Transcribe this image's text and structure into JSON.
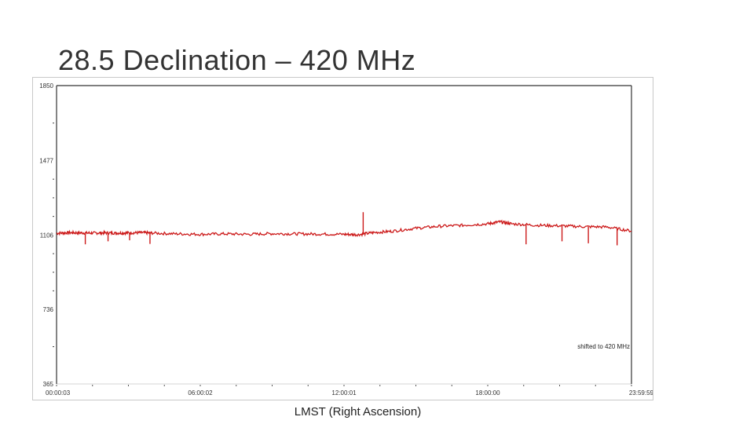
{
  "slide": {
    "title": "28.5 Declination – 420 MHz",
    "xlabel": "LMST (Right Ascension)"
  },
  "chart_data": {
    "type": "line",
    "title": "28.5 Declination – 420 MHz",
    "xlabel": "LMST (Right Ascension)",
    "ylabel": "",
    "x_tick_labels": [
      "00:00:03",
      "06:00:02",
      "12:00:01",
      "18:00:00",
      "23:59:59"
    ],
    "y_tick_labels": [
      "1850",
      "1477",
      "1106",
      "736",
      "365"
    ],
    "y_tick_values": [
      1850,
      1477,
      1106,
      736,
      365
    ],
    "ylim": [
      365,
      1850
    ],
    "xlim_hours": [
      0,
      24
    ],
    "annotation": "shifted to 420 MHz",
    "grid": false,
    "colors": {
      "series": "#cc1a1a",
      "axis": "#333333"
    },
    "series": [
      {
        "x_hours": [
          0.0,
          0.5,
          1.0,
          1.5,
          2.0,
          2.5,
          3.0,
          3.5,
          4.0,
          5.0,
          6.0,
          7.0,
          8.0,
          9.0,
          10.0,
          11.0,
          12.0,
          12.6,
          13.2,
          14.0,
          15.0,
          16.0,
          17.0,
          18.0,
          18.5,
          19.0,
          20.0,
          21.0,
          22.0,
          23.0,
          24.0
        ],
        "values": [
          1115,
          1118,
          1117,
          1116,
          1117,
          1116,
          1117,
          1118,
          1116,
          1112,
          1110,
          1112,
          1110,
          1113,
          1112,
          1111,
          1110,
          1108,
          1118,
          1125,
          1140,
          1150,
          1155,
          1162,
          1172,
          1162,
          1155,
          1152,
          1148,
          1146,
          1126
        ]
      }
    ],
    "spikes": [
      {
        "x_hours": 1.2,
        "value": 1060
      },
      {
        "x_hours": 2.15,
        "value": 1075
      },
      {
        "x_hours": 3.05,
        "value": 1080
      },
      {
        "x_hours": 3.9,
        "value": 1062
      },
      {
        "x_hours": 12.8,
        "value": 1220
      },
      {
        "x_hours": 19.6,
        "value": 1060
      },
      {
        "x_hours": 21.1,
        "value": 1075
      },
      {
        "x_hours": 22.2,
        "value": 1065
      },
      {
        "x_hours": 23.4,
        "value": 1055
      }
    ]
  }
}
